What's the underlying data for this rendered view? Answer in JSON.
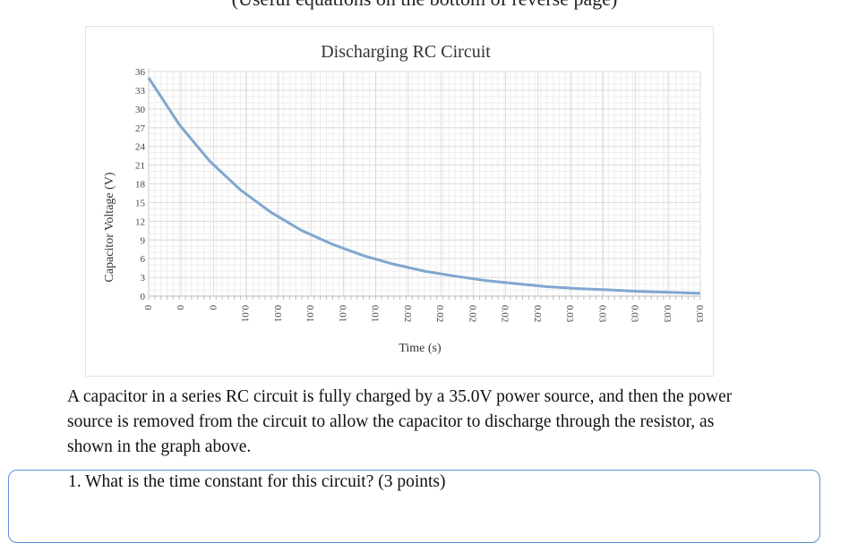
{
  "header": {
    "caption": "(Useful equations on the bottom of reverse page)"
  },
  "chart_data": {
    "type": "line",
    "title": "Discharging RC Circuit",
    "xlabel": "Time (s)",
    "ylabel": "Capacitor Voltage (V)",
    "ylim": [
      0,
      36
    ],
    "yticks": [
      0,
      3,
      6,
      9,
      12,
      15,
      18,
      21,
      24,
      27,
      30,
      33,
      36
    ],
    "xticks": [
      "0",
      "0",
      "0",
      "0.01",
      "0.01",
      "0.01",
      "0.01",
      "0.01",
      "0.02",
      "0.02",
      "0.02",
      "0.02",
      "0.02",
      "0.03",
      "0.03",
      "0.03",
      "0.03",
      "0.03"
    ],
    "xlim": [
      0,
      0.036
    ],
    "grid": true,
    "series": [
      {
        "name": "Capacitor Voltage",
        "color": "#7fa7cf",
        "x": [
          0,
          0.002,
          0.004,
          0.006,
          0.008,
          0.01,
          0.012,
          0.014,
          0.016,
          0.018,
          0.02,
          0.022,
          0.024,
          0.026,
          0.028,
          0.03,
          0.032,
          0.034,
          0.036
        ],
        "y": [
          35.0,
          27.5,
          21.6,
          17.0,
          13.4,
          10.5,
          8.3,
          6.5,
          5.1,
          4.0,
          3.2,
          2.5,
          2.0,
          1.5,
          1.2,
          1.0,
          0.75,
          0.6,
          0.45
        ]
      }
    ]
  },
  "problem": {
    "text": "A capacitor in a series RC circuit is fully charged by a 35.0V power source, and then the power source is removed from the circuit to allow the capacitor to discharge through the resistor, as shown in the graph above."
  },
  "question": {
    "text": "1. What is the time constant for this circuit? (3 points)"
  }
}
